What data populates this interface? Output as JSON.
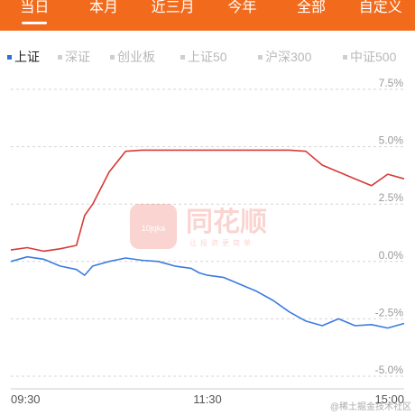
{
  "tabs": [
    {
      "label": "当日",
      "active": true
    },
    {
      "label": "本月",
      "active": false
    },
    {
      "label": "近三月",
      "active": false
    },
    {
      "label": "今年",
      "active": false
    },
    {
      "label": "全部",
      "active": false
    },
    {
      "label": "自定义",
      "active": false
    }
  ],
  "legend": [
    {
      "label": "上证",
      "active": true
    },
    {
      "label": "深证",
      "active": false
    },
    {
      "label": "创业板",
      "active": false
    },
    {
      "label": "上证50",
      "active": false
    },
    {
      "label": "沪深300",
      "active": false
    },
    {
      "label": "中证500",
      "active": false
    }
  ],
  "watermark": {
    "brand": "同花顺",
    "slogan": "让投资更简单",
    "logo_text": "10jqka"
  },
  "credit": "@稀土掘金技术社区",
  "colors": {
    "accent": "#f26a1b",
    "red_series": "#d63a36",
    "blue_series": "#3a7be0",
    "grid": "#d5d5d5"
  },
  "chart_data": {
    "type": "line",
    "y_tick_labels": [
      "7.5%",
      "5.0%",
      "2.5%",
      "0.0%",
      "-2.5%",
      "-5.0%"
    ],
    "ylim": [
      -5.0,
      7.5
    ],
    "y_unit": "%",
    "x_tick_labels": [
      "09:30",
      "11:30",
      "15:00"
    ],
    "x": [
      0,
      10,
      20,
      30,
      40,
      45,
      50,
      60,
      70,
      80,
      90,
      95,
      100,
      110,
      115,
      120,
      130,
      140,
      150,
      160,
      170,
      180,
      190,
      200,
      210,
      220,
      230,
      240
    ],
    "grid": true,
    "legend_position": "top",
    "series": [
      {
        "color": "#d63a36",
        "values": [
          0.5,
          0.6,
          0.45,
          0.55,
          0.7,
          2.0,
          2.5,
          3.9,
          4.8,
          4.85,
          4.85,
          4.85,
          4.85,
          4.85,
          4.85,
          4.85,
          4.85,
          4.85,
          4.85,
          4.85,
          4.85,
          4.8,
          4.2,
          3.9,
          3.6,
          3.3,
          3.8,
          3.6
        ]
      },
      {
        "color": "#3a7be0",
        "values": [
          0.0,
          0.2,
          0.1,
          -0.2,
          -0.35,
          -0.6,
          -0.2,
          0.0,
          0.15,
          0.05,
          0.0,
          -0.1,
          -0.2,
          -0.3,
          -0.5,
          -0.6,
          -0.7,
          -1.0,
          -1.3,
          -1.7,
          -2.2,
          -2.6,
          -2.8,
          -2.5,
          -2.8,
          -2.75,
          -2.9,
          -2.7
        ]
      }
    ]
  }
}
